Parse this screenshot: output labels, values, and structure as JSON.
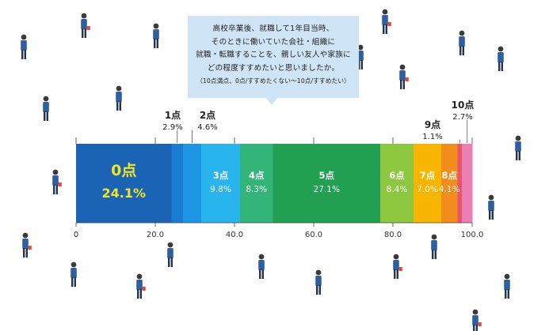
{
  "question": {
    "lines": [
      "高校卒業後、就職して1年目当時、",
      "そのときに働いていた会社・組織に",
      "就職・転職することを、親しい友人や家族に",
      "どの程度すすめたいと思いましたか。"
    ],
    "note": "（10点満点、0点/すすめたくない～10点/すすめたい）"
  },
  "chart_data": {
    "type": "bar",
    "orientation": "horizontal-stacked-100",
    "categories": [
      "0点",
      "1点",
      "2点",
      "3点",
      "4点",
      "5点",
      "6点",
      "7点",
      "8点",
      "9点",
      "10点"
    ],
    "values": [
      24.1,
      2.9,
      4.6,
      9.8,
      8.3,
      27.1,
      8.4,
      7.0,
      4.1,
      1.1,
      2.7
    ],
    "value_labels": [
      "24.1%",
      "2.9%",
      "4.6%",
      "9.8%",
      "8.3%",
      "27.1%",
      "8.4%",
      "7.0%",
      "4.1%",
      "1.1%",
      "2.7%"
    ],
    "colors": [
      "#1a63b5",
      "#1b7cd4",
      "#1d96e4",
      "#28b4ec",
      "#33b579",
      "#20a050",
      "#8dc63f",
      "#f7b500",
      "#f28c1c",
      "#e9546b",
      "#ea7fb4"
    ],
    "label_placement": [
      "inside",
      "above",
      "above",
      "inside",
      "inside",
      "inside",
      "inside",
      "inside",
      "inside",
      "above",
      "above"
    ],
    "label_colors": [
      "#f4e626",
      "#222222",
      "#222222",
      "#ffffff",
      "#ffffff",
      "#ffffff",
      "#ffffff",
      "#ffffff",
      "#ffffff",
      "#222222",
      "#222222"
    ],
    "xlim": [
      0,
      100
    ],
    "xticks": [
      "0",
      "20.0",
      "40.0",
      "60.0",
      "80.0",
      "100.0"
    ],
    "xtick_values": [
      0,
      20,
      40,
      60,
      80,
      100
    ],
    "grid": false,
    "legend": "none"
  },
  "figures_color": "#2f5f9c",
  "figures_accent": "#e5473b"
}
